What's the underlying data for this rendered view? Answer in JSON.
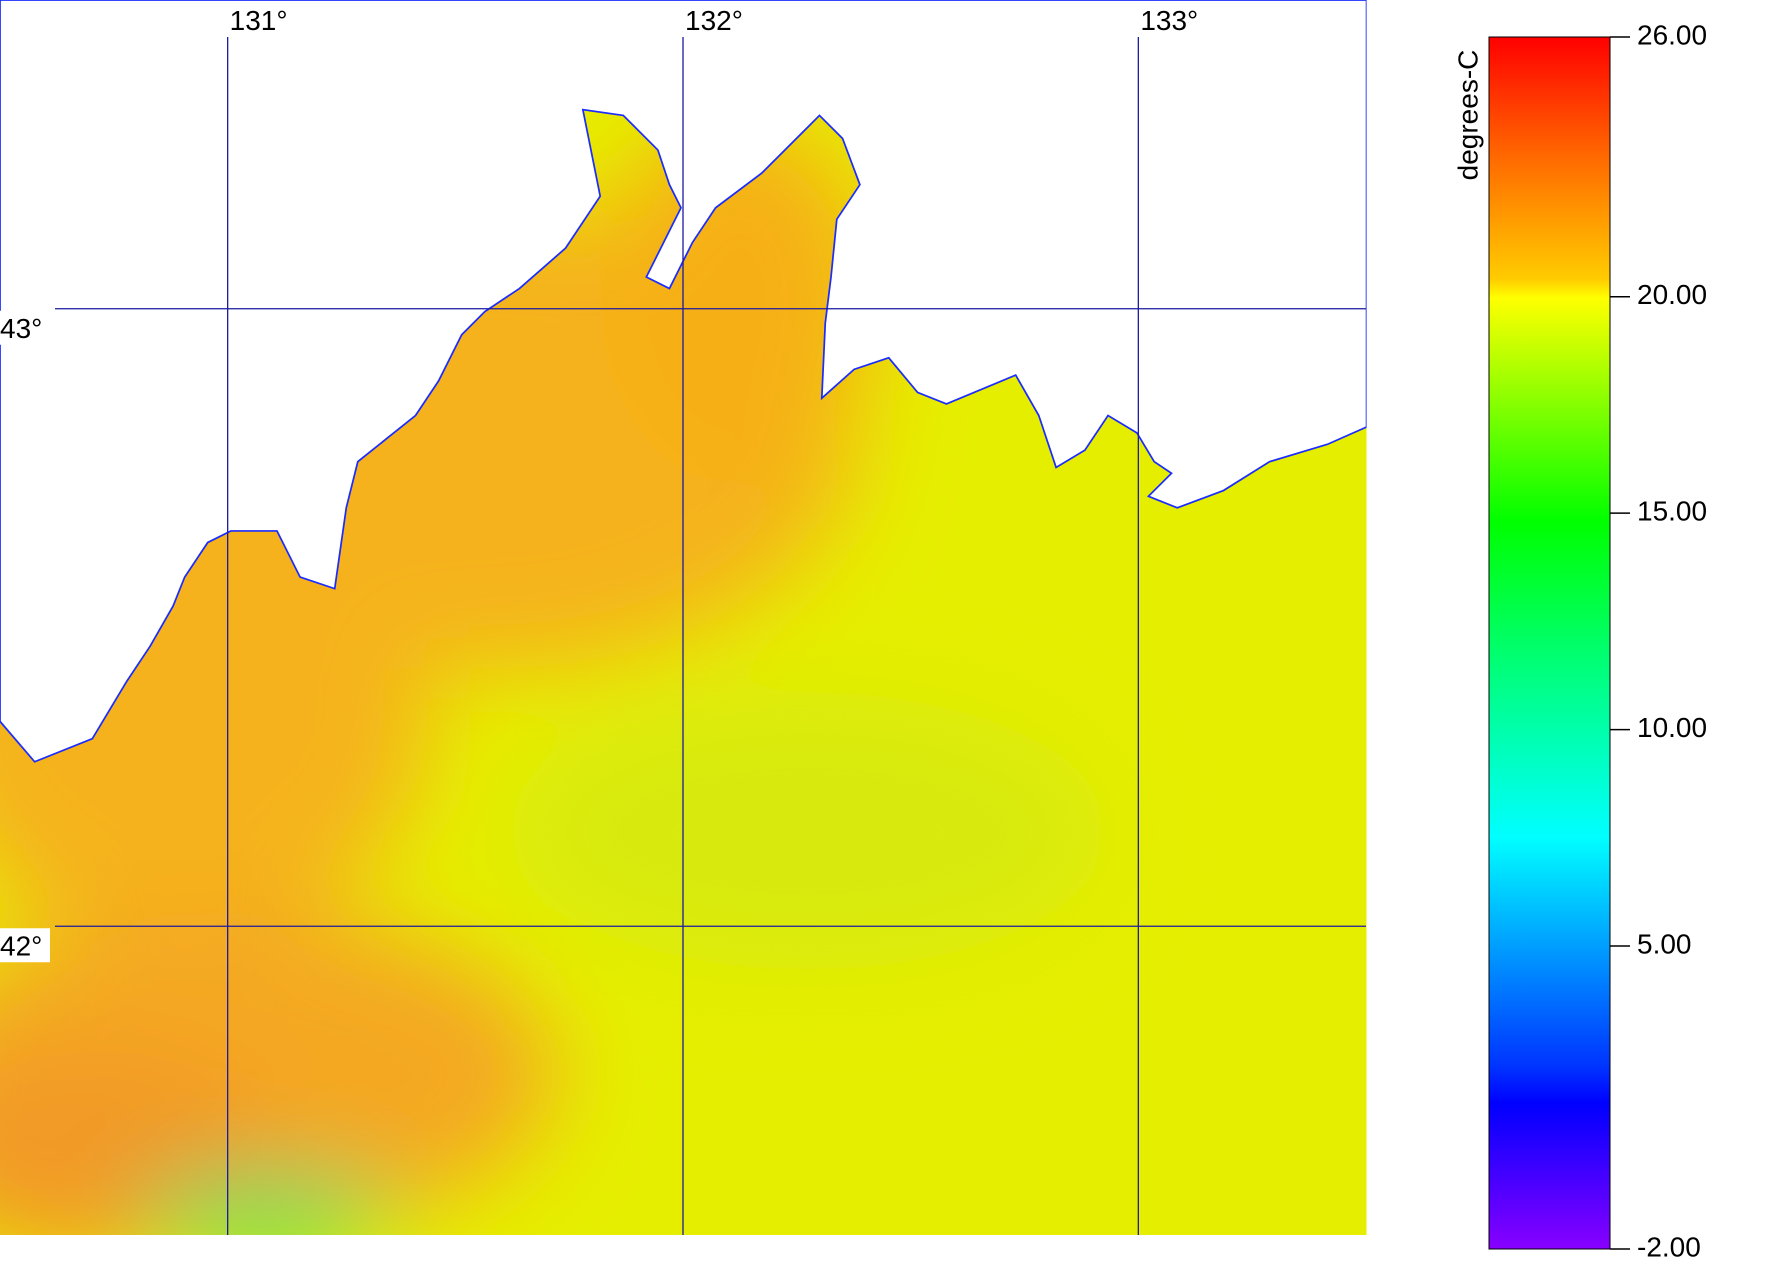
{
  "map": {
    "lonlim": [
      130.5,
      133.5
    ],
    "latlim": [
      41.5,
      43.5
    ],
    "longitudes": [
      {
        "value": 131,
        "label": "131°"
      },
      {
        "value": 132,
        "label": "132°"
      },
      {
        "value": 133,
        "label": "133°"
      }
    ],
    "latitudes": [
      {
        "value": 43,
        "label": "43°"
      },
      {
        "value": 42,
        "label": "42°"
      }
    ]
  },
  "colorbar": {
    "unit": "degrees-C",
    "lim": [
      -2,
      26
    ],
    "ticks": [
      {
        "value": 26,
        "label": "26.00"
      },
      {
        "value": 20,
        "label": "20.00"
      },
      {
        "value": 15,
        "label": "15.00"
      },
      {
        "value": 10,
        "label": "10.00"
      },
      {
        "value": 5,
        "label": "5.00"
      },
      {
        "value": -2,
        "label": "-2.00"
      }
    ]
  }
}
